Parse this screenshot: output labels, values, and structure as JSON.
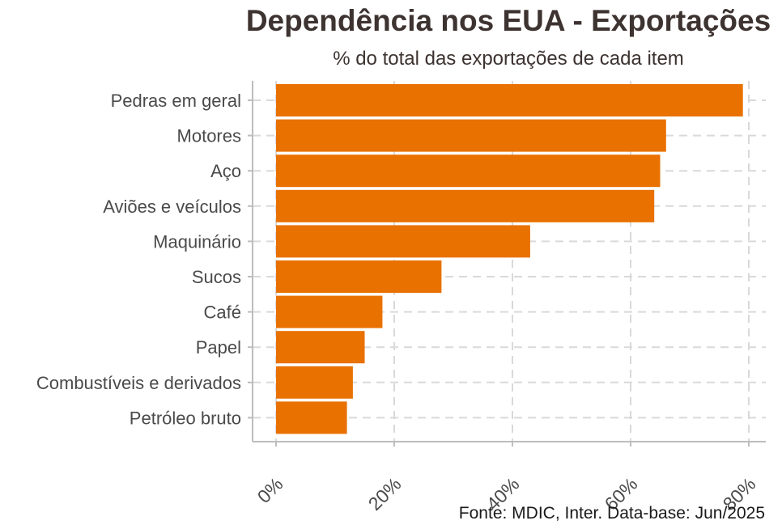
{
  "chart_data": {
    "type": "bar",
    "orientation": "horizontal",
    "title": "Dependência nos EUA - Exportações",
    "subtitle": "% do total das exportações de cada item",
    "caption": "Fonte: MDIC, Inter. Data-base: Jun/2025",
    "categories": [
      "Pedras em geral",
      "Motores",
      "Aço",
      "Aviões e veículos",
      "Maquinário",
      "Sucos",
      "Café",
      "Papel",
      "Combustíveis e derivados",
      "Petróleo bruto"
    ],
    "values": [
      79,
      66,
      65,
      64,
      43,
      28,
      18,
      15,
      13,
      12
    ],
    "value_unit": "%",
    "xlim": [
      0,
      80
    ],
    "x_ticks": [
      0,
      20,
      40,
      60,
      80
    ],
    "x_tick_labels": [
      "0%",
      "20%",
      "40%",
      "60%",
      "80%"
    ],
    "xlabel": "",
    "ylabel": "",
    "grid": true,
    "legend": "none",
    "bar_color": "#e97100"
  }
}
